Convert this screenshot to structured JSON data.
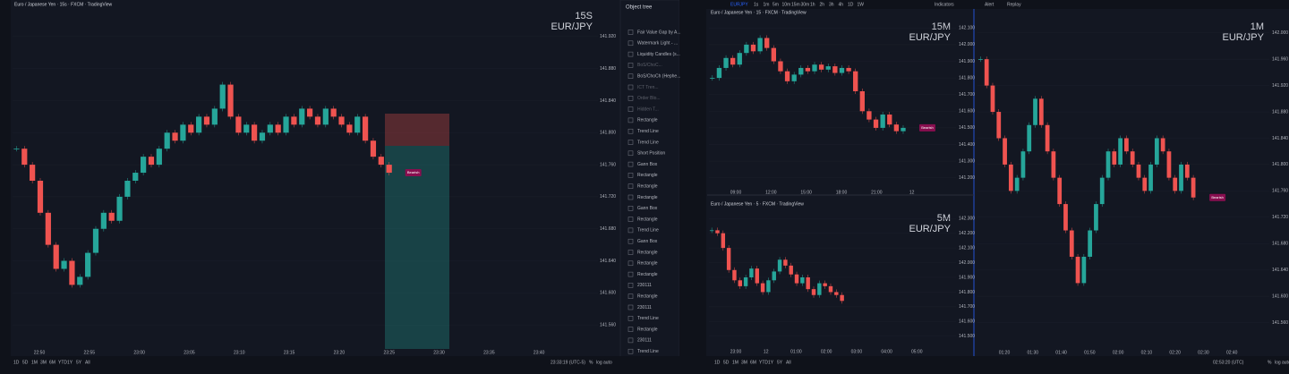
{
  "window": {
    "symbol": "EURJPY",
    "intervals": [
      "1s",
      "1m",
      "5m",
      "10m",
      "15m",
      "30m",
      "1h",
      "2h",
      "3h",
      "4h",
      "1D",
      "1W"
    ],
    "toolbar_items": [
      "Indicators",
      "Alert",
      "Replay"
    ],
    "ranges": [
      "1D",
      "5D",
      "1M",
      "3M",
      "6M",
      "YTD",
      "1Y",
      "5Y",
      "All"
    ],
    "scale_options": [
      "%",
      "log",
      "auto"
    ]
  },
  "object_tree": {
    "title": "Object tree",
    "items": [
      "Fair Value Gap by A...",
      "Watermark Light - ...",
      "Liquidity Candles (s...",
      "BoS/ChoC...",
      "BoS/ChoCh (Hephe...",
      "ICT Tren...",
      "Order Blo...",
      "Hidden T...",
      "Rectangle",
      "Trend Line",
      "Trend Line",
      "Short Position",
      "Gann Box",
      "Rectangle",
      "Rectangle",
      "Rectangle",
      "Gann Box",
      "Rectangle",
      "Trend Line",
      "Gann Box",
      "Rectangle",
      "Rectangle",
      "Rectangle",
      "230111",
      "Rectangle",
      "230111",
      "Trend Line",
      "Rectangle",
      "230111",
      "Trend Line"
    ]
  },
  "chart_data": [
    {
      "type": "candlestick",
      "title": "Euro / Japanese Yen · 15s · FXCM · TradingView",
      "watermark_interval": "15S",
      "watermark_symbol": "EUR/JPY",
      "clock": "23:33:19 (UTC-5)",
      "label": "Bearish",
      "xticks": [
        "22:50",
        "22:55",
        "23:00",
        "23:05",
        "23:10",
        "23:15",
        "23:20",
        "23:25",
        "23:30",
        "23:35",
        "23:40"
      ],
      "ylim": [
        141.53,
        141.95
      ],
      "yticks": [
        {
          "value": 141.56,
          "label": "141.560"
        },
        {
          "value": 141.6,
          "label": "141.600"
        },
        {
          "value": 141.64,
          "label": "141.640"
        },
        {
          "value": 141.68,
          "label": "141.680"
        },
        {
          "value": 141.72,
          "label": "141.720"
        },
        {
          "value": 141.76,
          "label": "141.760"
        },
        {
          "value": 141.8,
          "label": "141.800"
        },
        {
          "value": 141.84,
          "label": "141.840"
        },
        {
          "value": 141.88,
          "label": "141.880"
        },
        {
          "value": 141.92,
          "label": "141.920"
        }
      ],
      "closes": [
        141.78,
        141.76,
        141.74,
        141.7,
        141.66,
        141.63,
        141.64,
        141.61,
        141.62,
        141.65,
        141.68,
        141.7,
        141.69,
        141.72,
        141.74,
        141.75,
        141.77,
        141.76,
        141.78,
        141.8,
        141.79,
        141.81,
        141.8,
        141.82,
        141.81,
        141.83,
        141.86,
        141.82,
        141.8,
        141.81,
        141.79,
        141.8,
        141.81,
        141.8,
        141.82,
        141.81,
        141.83,
        141.82,
        141.81,
        141.83,
        141.82,
        141.81,
        141.8,
        141.82,
        141.79,
        141.77,
        141.76,
        141.75
      ]
    },
    {
      "type": "candlestick",
      "title": "Euro / Japanese Yen · 15 · FXCM · TradingView",
      "watermark_interval": "15M",
      "watermark_symbol": "EUR/JPY",
      "label": "Bearish",
      "xticks": [
        "09:00",
        "12:00",
        "15:00",
        "18:00",
        "21:00",
        "12"
      ],
      "ylim": [
        141.15,
        142.15
      ],
      "yticks": [
        {
          "value": 141.2,
          "label": "141.200"
        },
        {
          "value": 141.3,
          "label": "141.300"
        },
        {
          "value": 141.4,
          "label": "141.400"
        },
        {
          "value": 141.5,
          "label": "141.500"
        },
        {
          "value": 141.6,
          "label": "141.600"
        },
        {
          "value": 141.7,
          "label": "141.700"
        },
        {
          "value": 141.8,
          "label": "141.800"
        },
        {
          "value": 141.9,
          "label": "141.900"
        },
        {
          "value": 142,
          "label": "142.000"
        },
        {
          "value": 142.1,
          "label": "142.100"
        }
      ],
      "closes": [
        141.8,
        141.86,
        141.92,
        141.88,
        141.95,
        142.0,
        141.96,
        142.04,
        141.98,
        141.9,
        141.84,
        141.78,
        141.82,
        141.86,
        141.84,
        141.88,
        141.85,
        141.87,
        141.83,
        141.86,
        141.84,
        141.72,
        141.6,
        141.55,
        141.5,
        141.58,
        141.52,
        141.48,
        141.5
      ]
    },
    {
      "type": "candlestick",
      "title": "Euro / Japanese Yen · 5 · FXCM · TradingView",
      "watermark_interval": "5M",
      "watermark_symbol": "EUR/JPY",
      "xticks": [
        "23:00",
        "12",
        "01:00",
        "02:00",
        "03:00",
        "04:00",
        "05:00"
      ],
      "ylim": [
        141.45,
        142.35
      ],
      "yticks": [
        {
          "value": 141.5,
          "label": "141.500"
        },
        {
          "value": 141.6,
          "label": "141.600"
        },
        {
          "value": 141.7,
          "label": "141.700"
        },
        {
          "value": 141.8,
          "label": "141.800"
        },
        {
          "value": 141.9,
          "label": "141.900"
        },
        {
          "value": 142,
          "label": "142.000"
        },
        {
          "value": 142.1,
          "label": "142.100"
        },
        {
          "value": 142.2,
          "label": "142.200"
        },
        {
          "value": 142.3,
          "label": "142.300"
        }
      ],
      "closes": [
        142.22,
        142.2,
        142.1,
        141.95,
        141.88,
        141.84,
        141.9,
        141.96,
        141.86,
        141.8,
        141.88,
        141.94,
        142.02,
        141.98,
        141.92,
        141.86,
        141.9,
        141.82,
        141.78,
        141.86,
        141.84,
        141.8,
        141.78,
        141.74
      ]
    },
    {
      "type": "candlestick",
      "watermark_interval": "1M",
      "watermark_symbol": "EUR/JPY",
      "clock": "02:53:20 (UTC)",
      "label": "Bearish",
      "xticks": [
        "01:20",
        "01:30",
        "01:40",
        "01:50",
        "02:00",
        "02:10",
        "02:20",
        "02:30",
        "02:40"
      ],
      "ylim": [
        141.52,
        142.02
      ],
      "yticks": [
        {
          "value": 141.56,
          "label": "141.560"
        },
        {
          "value": 141.6,
          "label": "141.600"
        },
        {
          "value": 141.64,
          "label": "141.640"
        },
        {
          "value": 141.68,
          "label": "141.680"
        },
        {
          "value": 141.72,
          "label": "141.720"
        },
        {
          "value": 141.76,
          "label": "141.760"
        },
        {
          "value": 141.8,
          "label": "141.800"
        },
        {
          "value": 141.84,
          "label": "141.840"
        },
        {
          "value": 141.88,
          "label": "141.880"
        },
        {
          "value": 141.92,
          "label": "141.920"
        },
        {
          "value": 141.96,
          "label": "141.960"
        },
        {
          "value": 142,
          "label": "142.000"
        }
      ],
      "closes": [
        141.96,
        141.92,
        141.88,
        141.84,
        141.8,
        141.76,
        141.78,
        141.82,
        141.86,
        141.9,
        141.86,
        141.82,
        141.78,
        141.74,
        141.7,
        141.66,
        141.62,
        141.66,
        141.7,
        141.74,
        141.78,
        141.82,
        141.8,
        141.84,
        141.82,
        141.8,
        141.78,
        141.76,
        141.8,
        141.84,
        141.82,
        141.78,
        141.76,
        141.8,
        141.78,
        141.75
      ]
    }
  ]
}
